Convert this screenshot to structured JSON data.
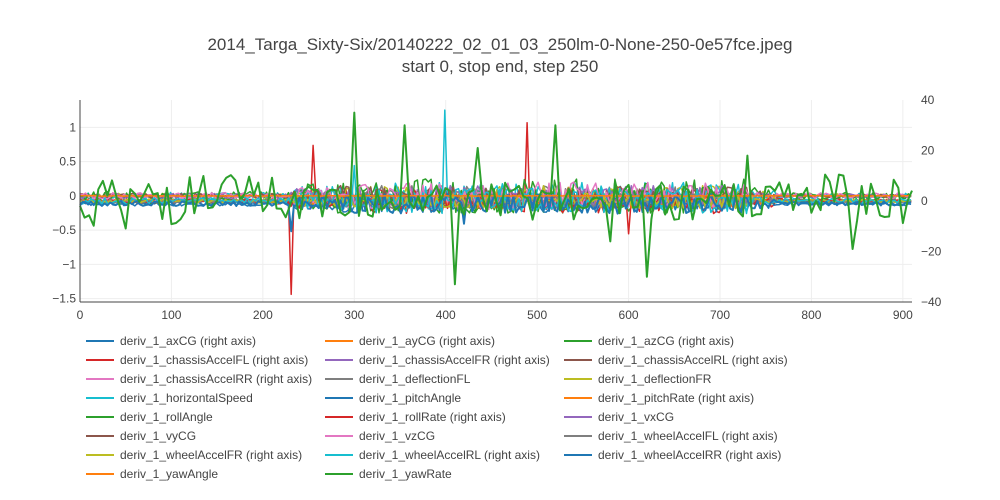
{
  "chart_data": {
    "type": "line",
    "title": "2014_Targa_Sixty-Six/20140222_02_01_03_250lm-0-None-250-0e57fce.jpeg",
    "subtitle": "start 0, stop end, step 250",
    "xlim": [
      0,
      910
    ],
    "ylim": [
      -1.55,
      1.4
    ],
    "y2lim": [
      -40,
      40
    ],
    "grid": true,
    "x_ticks": [
      0,
      100,
      200,
      300,
      400,
      500,
      600,
      700,
      800,
      900
    ],
    "y_ticks": [
      -1.5,
      -1,
      -0.5,
      0,
      0.5,
      1
    ],
    "y_tick_labels": [
      "−1.5",
      "−1",
      "−0.5",
      "0",
      "0.5",
      "1"
    ],
    "y2_ticks": [
      -40,
      -20,
      0,
      20,
      40
    ],
    "y2_tick_labels": [
      "−40",
      "−20",
      "0",
      "20",
      "40"
    ],
    "legend_position": "bottom",
    "series": [
      {
        "name": "deriv_1_axCG (right axis)",
        "color": "#1f77b4",
        "axis": "right",
        "amp": 3,
        "seed": 1
      },
      {
        "name": "deriv_1_ayCG (right axis)",
        "color": "#ff7f0e",
        "axis": "right",
        "amp": 0.2,
        "seed": 2,
        "flat": true
      },
      {
        "name": "deriv_1_azCG (right axis)",
        "color": "#2ca02c",
        "axis": "right",
        "amp": 5,
        "seed": 3
      },
      {
        "name": "deriv_1_chassisAccelFL (right axis)",
        "color": "#d62728",
        "axis": "right",
        "amp": 5,
        "seed": 4,
        "spikes": [
          [
            232,
            -37
          ],
          [
            255,
            22
          ],
          [
            490,
            31
          ],
          [
            600,
            -13
          ]
        ]
      },
      {
        "name": "deriv_1_chassisAccelFR (right axis)",
        "color": "#9467bd",
        "axis": "right",
        "amp": 3,
        "seed": 5
      },
      {
        "name": "deriv_1_chassisAccelRL (right axis)",
        "color": "#8c564b",
        "axis": "right",
        "amp": 3,
        "seed": 6
      },
      {
        "name": "deriv_1_chassisAccelRR (right axis)",
        "color": "#e377c2",
        "axis": "right",
        "amp": 3,
        "seed": 7
      },
      {
        "name": "deriv_1_deflectionFL",
        "color": "#7f7f7f",
        "axis": "left",
        "amp": 0.15,
        "seed": 8
      },
      {
        "name": "deriv_1_deflectionFR",
        "color": "#bcbd22",
        "axis": "left",
        "amp": 0.15,
        "seed": 9
      },
      {
        "name": "deriv_1_horizontalSpeed",
        "color": "#17becf",
        "axis": "left",
        "amp": 0.2,
        "seed": 10
      },
      {
        "name": "deriv_1_pitchAngle",
        "color": "#1f77b4",
        "axis": "left",
        "amp": 0.12,
        "seed": 11
      },
      {
        "name": "deriv_1_pitchRate (right axis)",
        "color": "#ff7f0e",
        "axis": "right",
        "amp": 3,
        "seed": 12
      },
      {
        "name": "deriv_1_rollAngle",
        "color": "#2ca02c",
        "axis": "left",
        "amp": 0.25,
        "seed": 13
      },
      {
        "name": "deriv_1_rollRate (right axis)",
        "color": "#d62728",
        "axis": "right",
        "amp": 3,
        "seed": 14
      },
      {
        "name": "deriv_1_vxCG",
        "color": "#9467bd",
        "axis": "left",
        "amp": 0.15,
        "seed": 15
      },
      {
        "name": "deriv_1_vyCG",
        "color": "#8c564b",
        "axis": "left",
        "amp": 0.15,
        "seed": 16
      },
      {
        "name": "deriv_1_vzCG",
        "color": "#e377c2",
        "axis": "left",
        "amp": 0.2,
        "seed": 17
      },
      {
        "name": "deriv_1_wheelAccelFL (right axis)",
        "color": "#7f7f7f",
        "axis": "right",
        "amp": 3,
        "seed": 18
      },
      {
        "name": "deriv_1_wheelAccelFR (right axis)",
        "color": "#bcbd22",
        "axis": "right",
        "amp": 3,
        "seed": 19
      },
      {
        "name": "deriv_1_wheelAccelRL (right axis)",
        "color": "#17becf",
        "axis": "right",
        "amp": 5,
        "seed": 20,
        "spikes": [
          [
            398,
            36
          ],
          [
            300,
            14
          ]
        ]
      },
      {
        "name": "deriv_1_wheelAccelRR (right axis)",
        "color": "#1f77b4",
        "axis": "right",
        "amp": 4,
        "seed": 21,
        "spikes": [
          [
            232,
            -11
          ],
          [
            420,
            -8
          ]
        ]
      },
      {
        "name": "deriv_1_yawAngle",
        "color": "#ff7f0e",
        "axis": "left",
        "amp": 0.01,
        "seed": 22,
        "flat": true
      },
      {
        "name": "deriv_1_yawRate",
        "color": "#2ca02c",
        "axis": "right",
        "amp": 7,
        "seed": 23,
        "spikes": [
          [
            300,
            35
          ],
          [
            355,
            30
          ],
          [
            410,
            -33
          ],
          [
            435,
            21
          ],
          [
            520,
            30
          ],
          [
            580,
            -16
          ],
          [
            620,
            -30
          ],
          [
            730,
            18
          ],
          [
            845,
            -19
          ]
        ]
      }
    ]
  }
}
